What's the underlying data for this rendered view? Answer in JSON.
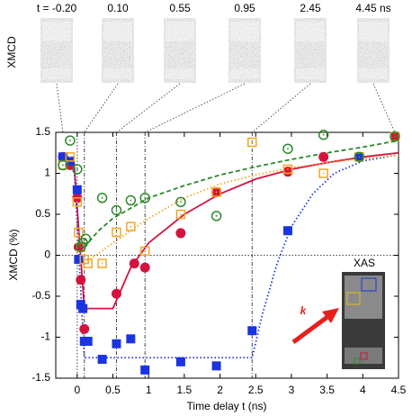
{
  "chart_data": {
    "type": "scatter",
    "xlabel": "Time delay t (ns)",
    "ylabel": "XMCD (%)",
    "xlim": [
      -0.3,
      4.5
    ],
    "ylim": [
      -1.5,
      1.5
    ],
    "xticks": [
      0,
      0.5,
      1,
      1.5,
      2,
      2.5,
      3,
      3.5,
      4,
      4.5
    ],
    "yticks": [
      -1.5,
      -1,
      -0.5,
      0,
      0.5,
      1,
      1.5
    ],
    "snapshot_axis_label": "XMCD",
    "snapshots": [
      {
        "time": -0.2,
        "label": "t = -0.20"
      },
      {
        "time": 0.1,
        "label": "0.10"
      },
      {
        "time": 0.55,
        "label": "0.55"
      },
      {
        "time": 0.95,
        "label": "0.95"
      },
      {
        "time": 2.45,
        "label": "2.45"
      },
      {
        "time": 4.45,
        "label": "4.45 ns"
      }
    ],
    "inset_label": "XAS",
    "arrow_label": "k",
    "series": [
      {
        "color": "#d4123e",
        "marker": "circle",
        "filled": true,
        "x": [
          -0.2,
          -0.1,
          0,
          0.02,
          0.05,
          0.1,
          0.55,
          0.8,
          0.95,
          1.45,
          1.95,
          2.95,
          3.45,
          4.45
        ],
        "values": [
          1.2,
          1.1,
          0.7,
          0.1,
          -0.3,
          -0.9,
          -0.47,
          -0.1,
          -0.15,
          0.27,
          0.77,
          1.02,
          1.2,
          1.45
        ]
      },
      {
        "color": "#1a35e0",
        "marker": "square",
        "filled": true,
        "x": [
          -0.2,
          -0.1,
          0,
          0.02,
          0.05,
          0.08,
          0.1,
          0.15,
          0.35,
          0.55,
          0.75,
          0.95,
          1.45,
          1.95,
          2.45,
          2.95,
          3.95
        ],
        "values": [
          1.2,
          1.15,
          0.8,
          -0.05,
          -0.6,
          -0.65,
          -1.05,
          -1.05,
          -1.27,
          -1.08,
          -1.02,
          -1.4,
          -1.3,
          -1.35,
          -0.92,
          0.3,
          1.2
        ]
      },
      {
        "color": "#f5a623",
        "marker": "square",
        "filled": false,
        "x": [
          -0.2,
          -0.1,
          0,
          0.02,
          0.05,
          0.1,
          0.15,
          0.35,
          0.55,
          0.75,
          0.95,
          1.45,
          1.95,
          2.45,
          2.95,
          3.45,
          3.95,
          4.45
        ],
        "values": [
          1.1,
          1.2,
          0.65,
          0.28,
          0.1,
          -0.05,
          -0.1,
          -0.1,
          0.28,
          0.35,
          0.05,
          0.5,
          0.77,
          1.38,
          1.05,
          1.0,
          1.2,
          1.45
        ]
      },
      {
        "color": "#2a8a2a",
        "marker": "circle",
        "filled": false,
        "x": [
          -0.2,
          -0.1,
          0,
          0.05,
          0.08,
          0.12,
          0.35,
          0.55,
          0.75,
          0.95,
          1.45,
          1.95,
          2.95,
          3.45,
          3.95,
          4.45
        ],
        "values": [
          1.1,
          1.4,
          1.05,
          0.1,
          0.15,
          0.2,
          0.7,
          0.55,
          0.67,
          0.7,
          0.65,
          0.48,
          1.3,
          1.47,
          1.2,
          1.45
        ]
      }
    ],
    "fits": [
      {
        "color": "#d4123e",
        "dash": "solid",
        "x": [
          -0.05,
          0.1,
          0.5,
          0.75,
          1,
          1.5,
          2,
          2.5,
          3,
          3.5,
          4,
          4.5
        ],
        "values": [
          1.2,
          -0.65,
          -0.65,
          -0.15,
          0.15,
          0.5,
          0.75,
          0.93,
          1.05,
          1.13,
          1.2,
          1.25
        ]
      },
      {
        "color": "#1a35e0",
        "dash": "dotted",
        "x": [
          -0.05,
          0.1,
          2.45,
          2.6,
          2.8,
          3,
          3.3,
          3.6,
          4,
          4.45
        ],
        "values": [
          1.2,
          -1.25,
          -1.25,
          -0.7,
          -0.1,
          0.35,
          0.75,
          1.0,
          1.15,
          1.22
        ]
      },
      {
        "color": "#f5a623",
        "dash": "dotted",
        "x": [
          0.05,
          0.1,
          0.5,
          1,
          1.5,
          2,
          2.5,
          3,
          3.5,
          4,
          4.5
        ],
        "values": [
          -0.1,
          -0.1,
          0.15,
          0.45,
          0.7,
          0.87,
          0.98,
          1.07,
          1.13,
          1.18,
          1.22
        ]
      },
      {
        "color": "#2a8a2a",
        "dash": "dashed",
        "x": [
          0.1,
          0.3,
          0.5,
          1,
          1.5,
          2,
          2.5,
          3,
          3.5,
          4,
          4.5
        ],
        "values": [
          0.1,
          0.3,
          0.45,
          0.7,
          0.85,
          0.98,
          1.08,
          1.17,
          1.25,
          1.32,
          1.4
        ]
      }
    ]
  }
}
